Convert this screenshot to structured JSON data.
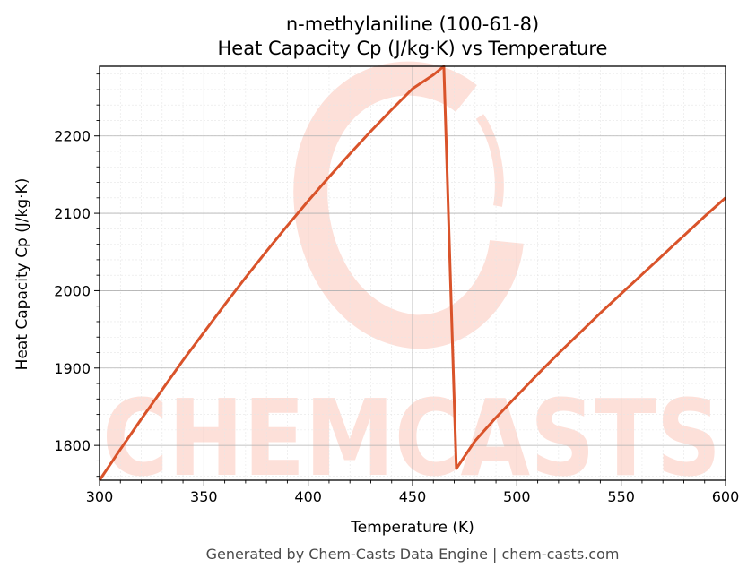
{
  "title_line1": "n-methylaniline (100-61-8)",
  "title_line2": "Heat Capacity Cp (J/kg·K) vs Temperature",
  "footer": "Generated by Chem-Casts Data Engine | chem-casts.com",
  "watermark": "CHEMCASTS",
  "colors": {
    "line": "#d9532a",
    "watermark": "#fde0d9",
    "grid_major": "#b0b0b0",
    "grid_minor": "#e6e6e6"
  },
  "chart_data": {
    "type": "line",
    "xlabel": "Temperature (K)",
    "ylabel": "Heat Capacity Cp (J/kg·K)",
    "xlim": [
      300,
      600
    ],
    "ylim": [
      1755,
      2290
    ],
    "xticks": [
      300,
      350,
      400,
      450,
      500,
      550,
      600
    ],
    "yticks": [
      1800,
      1900,
      2000,
      2100,
      2200
    ],
    "grid": true,
    "series": [
      {
        "x": [
          300,
          310,
          320,
          330,
          340,
          350,
          360,
          370,
          380,
          390,
          400,
          410,
          420,
          430,
          440,
          450,
          460,
          465,
          471,
          480,
          490,
          500,
          510,
          520,
          530,
          540,
          550,
          560,
          570,
          580,
          590,
          600
        ],
        "y": [
          1755,
          1795,
          1834,
          1872,
          1910,
          1946,
          1982,
          2017,
          2051,
          2084,
          2116,
          2147,
          2177,
          2206,
          2234,
          2261,
          2279,
          2290,
          1770,
          1806,
          1836,
          1864,
          1892,
          1919,
          1945,
          1971,
          1996,
          2021,
          2046,
          2071,
          2096,
          2120
        ]
      }
    ]
  }
}
